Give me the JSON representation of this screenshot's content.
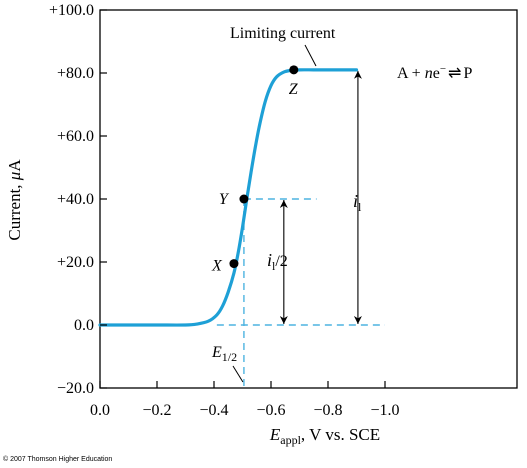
{
  "colors": {
    "curve": "#1ea0d6",
    "dashed": "#4db3e0",
    "axis": "#000000",
    "text": "#000000"
  },
  "chart_data": {
    "type": "line",
    "xlabel_main": "E",
    "xlabel_sub": "appl",
    "xlabel_rest": ", V vs. SCE",
    "ylabel_main": "Current, ",
    "ylabel_mu": "μ",
    "ylabel_unit": "A",
    "x_reversed": true,
    "xlim": [
      0.0,
      -1.2
    ],
    "ylim": [
      -20.0,
      100.0
    ],
    "x_ticks": [
      {
        "value": 0.0,
        "label": "0.0"
      },
      {
        "value": -0.2,
        "label": "−0.2"
      },
      {
        "value": -0.4,
        "label": "−0.4"
      },
      {
        "value": -0.6,
        "label": "−0.6"
      },
      {
        "value": -0.8,
        "label": "−0.8"
      },
      {
        "value": -1.0,
        "label": "−1.0"
      }
    ],
    "y_ticks": [
      {
        "value": -20.0,
        "label": "−20.0"
      },
      {
        "value": 0.0,
        "label": "0.0"
      },
      {
        "value": 20.0,
        "label": "+20.0"
      },
      {
        "value": 40.0,
        "label": "+40.0"
      },
      {
        "value": 60.0,
        "label": "+60.0"
      },
      {
        "value": 80.0,
        "label": "+80.0"
      },
      {
        "value": 100.0,
        "label": "+100.0"
      }
    ],
    "series": [
      {
        "x": [
          0.0,
          -0.1,
          -0.2,
          -0.3,
          -0.34,
          -0.38,
          -0.41,
          -0.43,
          -0.45,
          -0.47,
          -0.485,
          -0.5,
          -0.515,
          -0.53,
          -0.545,
          -0.56,
          -0.58,
          -0.6,
          -0.62,
          -0.645,
          -0.67,
          -0.7,
          -0.75,
          -0.8,
          -0.9
        ],
        "y": [
          0.0,
          0.0,
          0.0,
          0.0,
          0.3,
          1.2,
          3.2,
          6.0,
          10.5,
          16.5,
          23.0,
          31.0,
          40.0,
          48.5,
          56.5,
          63.5,
          71.0,
          76.0,
          78.8,
          80.3,
          80.8,
          81.0,
          81.0,
          81.0,
          81.0
        ]
      }
    ],
    "points": [
      {
        "label": "X",
        "x": -0.47,
        "y": 19.5
      },
      {
        "label": "Y",
        "x": -0.505,
        "y": 40.0
      },
      {
        "label": "Z",
        "x": -0.68,
        "y": 81.0
      }
    ],
    "annotations": {
      "limiting_current": "Limiting current",
      "reaction": "A + ne⁻ ⇌ P",
      "reaction_pre": "A + ",
      "reaction_n": "n",
      "reaction_e": "e",
      "reaction_sup": "−",
      "reaction_arrow": "⇌",
      "reaction_post": "P",
      "il_main": "i",
      "il_sub": "l",
      "il_half_main": "i",
      "il_half_sub": "l",
      "il_half_rest": "/2",
      "e_half_main": "E",
      "e_half_sub": "1/2"
    },
    "e_half": -0.505,
    "i_limit": 81.0,
    "i_half": 40.0
  },
  "footer": {
    "copyright": "© 2007 Thomson Higher Education"
  }
}
